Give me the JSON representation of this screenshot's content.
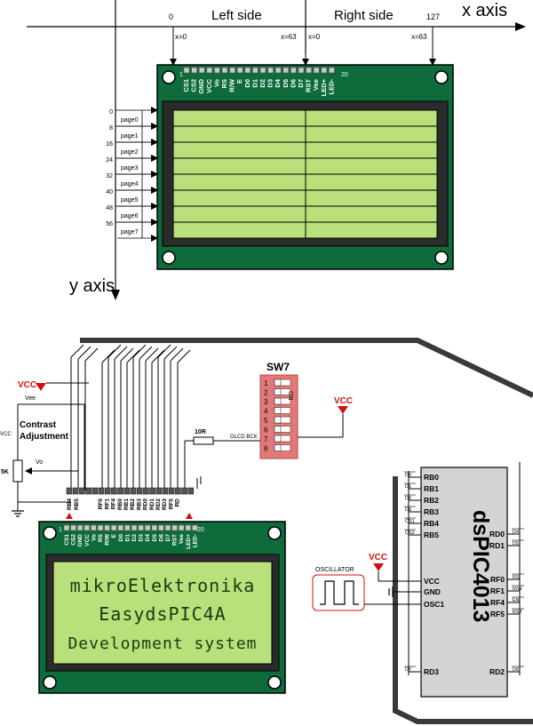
{
  "top": {
    "axis_x": "x axis",
    "axis_y": "y axis",
    "left_side": "Left side",
    "right_side": "Right side",
    "tick_0": "0",
    "tick_127": "127",
    "x0a": "x=0",
    "x63a": "x=63",
    "x0b": "x=0",
    "x63b": "x=63",
    "pin_first": "1",
    "pin_last": "20",
    "pins": [
      "CS1",
      "CS2",
      "GND",
      "VCC",
      "Vo",
      "RS",
      "R/W",
      "E",
      "D0",
      "D1",
      "D2",
      "D3",
      "D4",
      "D5",
      "D6",
      "D7",
      "RST",
      "Vee",
      "LED+",
      "LED-"
    ],
    "pages": [
      {
        "offset": "0",
        "label": "page0"
      },
      {
        "offset": "8",
        "label": "page1"
      },
      {
        "offset": "16",
        "label": "page2"
      },
      {
        "offset": "24",
        "label": "page3"
      },
      {
        "offset": "32",
        "label": "page4"
      },
      {
        "offset": "40",
        "label": "page5"
      },
      {
        "offset": "48",
        "label": "page6"
      },
      {
        "offset": "56",
        "label": "page7"
      }
    ]
  },
  "bottom": {
    "vcc1": "VCC",
    "vee": "Vee",
    "contrast_line1": "Contrast",
    "contrast_line2": "Adjustment",
    "vcc_left": "VCC",
    "pot": "5K",
    "vo": "Vo",
    "resistor": "10R",
    "glcd_bck": "GLCD BCK",
    "sw_title": "SW7",
    "sw_on": "ON",
    "sw_numbers": [
      "1",
      "2",
      "3",
      "4",
      "5",
      "6",
      "7",
      "8"
    ],
    "vcc_sw": "VCC",
    "header_labels": [
      "RB4",
      "RB5",
      "",
      "RF0",
      "RF1",
      "RF4",
      "RB0",
      "RB1",
      "RB2",
      "RB3",
      "RD0",
      "RD1",
      "RD2",
      "RD3",
      "RF5",
      "RD"
    ],
    "lcd_pin_first": "1",
    "lcd_pin_last": "20",
    "lcd_pins": [
      "CS1",
      "CS2",
      "GND",
      "VCC",
      "Vo",
      "RS",
      "R/W",
      "E",
      "D0",
      "D1",
      "D2",
      "D3",
      "D4",
      "D5",
      "D6",
      "D7",
      "RST",
      "Vee",
      "LED+",
      "LED-"
    ],
    "lcd_lines": [
      "mikroElektronika",
      "EasydsPIC4A",
      "Development system"
    ],
    "oscillator": "OSCILLATOR",
    "vcc_chip": "VCC",
    "chip_name": "dsPIC4013",
    "chip_left_pins": [
      "RB0",
      "RB1",
      "RB2",
      "RB3",
      "RB4",
      "RB5",
      "VCC",
      "GND",
      "OSC1",
      "RD3"
    ],
    "chip_left_signals": [
      "D0",
      "D1",
      "D2",
      "D3",
      "CS1",
      "CS2",
      "",
      "",
      "",
      "D7"
    ],
    "chip_right_pins": [
      "RD0",
      "RD1",
      "RF0",
      "RF1",
      "RF4",
      "RF5",
      "RD2"
    ],
    "chip_right_signals": [
      "D4",
      "D5",
      "RS",
      "R/W",
      "EN",
      "RST",
      "D6"
    ]
  }
}
